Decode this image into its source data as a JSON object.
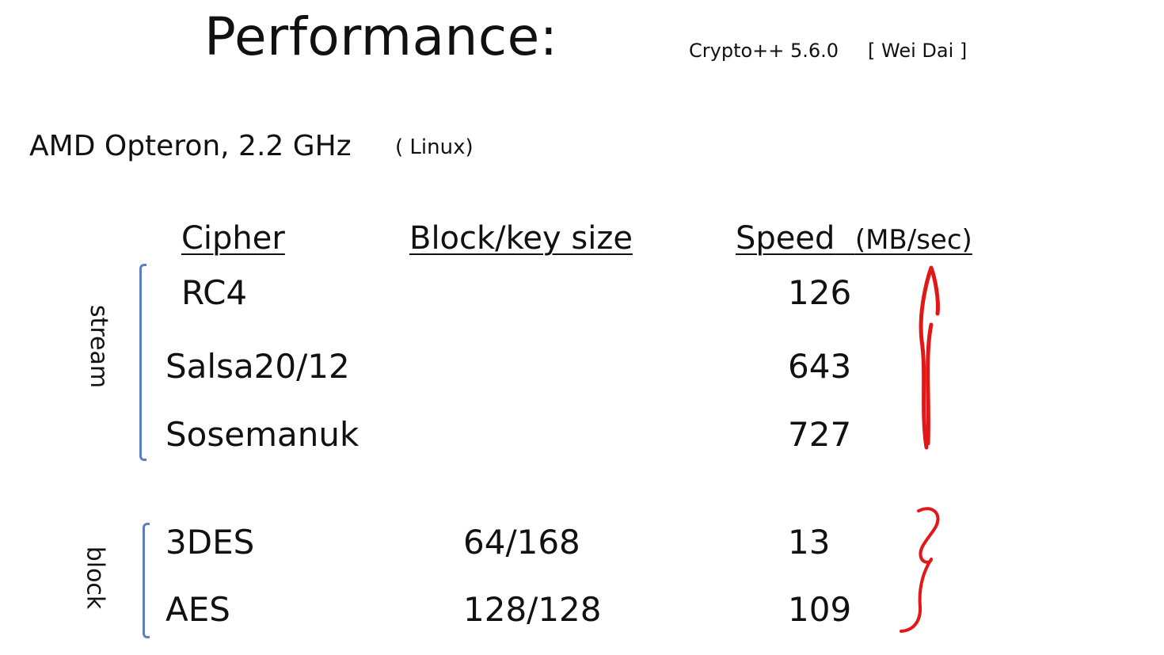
{
  "title": "Performance:",
  "library": "Crypto++  5.6.0",
  "author": "[ Wei Dai ]",
  "platform": {
    "cpu": "AMD Opteron,   2.2 GHz",
    "os": "( Linux)"
  },
  "table": {
    "headers": {
      "cipher": "Cipher",
      "block_key": "Block/key size",
      "speed": "Speed",
      "speed_unit": "(MB/sec)"
    },
    "groups": [
      {
        "label": "stream",
        "rows": [
          {
            "cipher": "RC4",
            "block_key": "",
            "speed": "126"
          },
          {
            "cipher": "Salsa20/12",
            "block_key": "",
            "speed": "643"
          },
          {
            "cipher": "Sosemanuk",
            "block_key": "",
            "speed": "727"
          }
        ]
      },
      {
        "label": "block",
        "rows": [
          {
            "cipher": "3DES",
            "block_key": "64/168",
            "speed": "13"
          },
          {
            "cipher": "AES",
            "block_key": "128/128",
            "speed": "109"
          }
        ]
      }
    ]
  },
  "colors": {
    "annotation": "#e01818",
    "bracket": "#5b7fc1"
  }
}
